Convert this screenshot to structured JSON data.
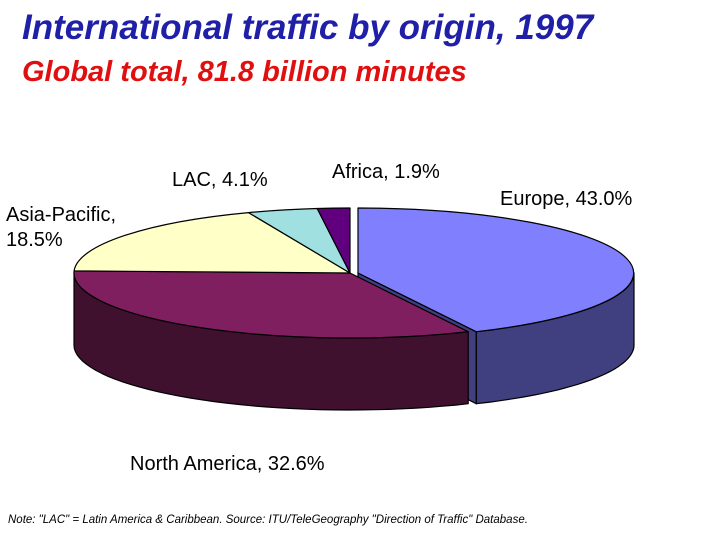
{
  "title": "International traffic by origin, 1997",
  "subtitle": "Global total, 81.8 billion minutes",
  "note": "Note: \"LAC\" = Latin America & Caribbean. Source:  ITU/TeleGeography \"Direction of Traffic\" Database.",
  "colors": {
    "title": "#1f1fa8",
    "subtitle": "#e01010"
  },
  "chart_data": {
    "type": "pie",
    "style": "3d-exploded",
    "slices": [
      {
        "label": "Europe",
        "value": 43.0,
        "text": "Europe, 43.0%",
        "top_color": "#8080ff",
        "side_color": "#404080"
      },
      {
        "label": "North America",
        "value": 32.6,
        "text": "North America, 32.6%",
        "top_color": "#7f1f5f",
        "side_color": "#40102f"
      },
      {
        "label": "Asia-Pacific",
        "value": 18.5,
        "text_lines": [
          "Asia-Pacific,",
          "18.5%"
        ],
        "top_color": "#ffffc8",
        "side_color": "#80806a"
      },
      {
        "label": "LAC",
        "value": 4.1,
        "text": "LAC, 4.1%",
        "top_color": "#a0e0e0",
        "side_color": "#507070"
      },
      {
        "label": "Africa",
        "value": 1.9,
        "text": "Africa, 1.9%",
        "top_color": "#60007f",
        "side_color": "#30003f"
      }
    ]
  }
}
